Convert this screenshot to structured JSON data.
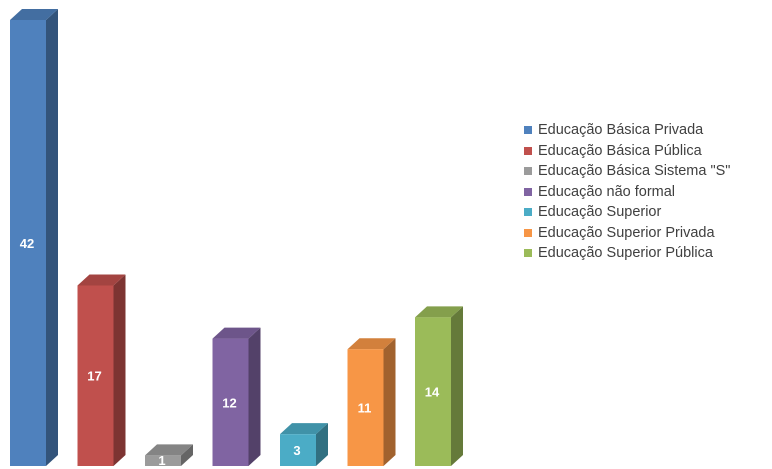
{
  "chart_data": {
    "type": "bar",
    "categories": [
      "Educação Básica Privada",
      "Educação Básica Pública",
      "Educação Básica Sistema \"S\"",
      "Educação não formal",
      "Educação Superior",
      "Educação Superior Privada",
      "Educação Superior Pública"
    ],
    "values": [
      42,
      17,
      1,
      12,
      3,
      11,
      14
    ],
    "colors": [
      "#4F81BD",
      "#C0504D",
      "#9B9B9B",
      "#8064A2",
      "#4BACC6",
      "#F79646",
      "#9BBB59"
    ],
    "ylim": [
      0,
      42
    ],
    "grid": false,
    "legend_position": "right",
    "data_labels": true
  }
}
